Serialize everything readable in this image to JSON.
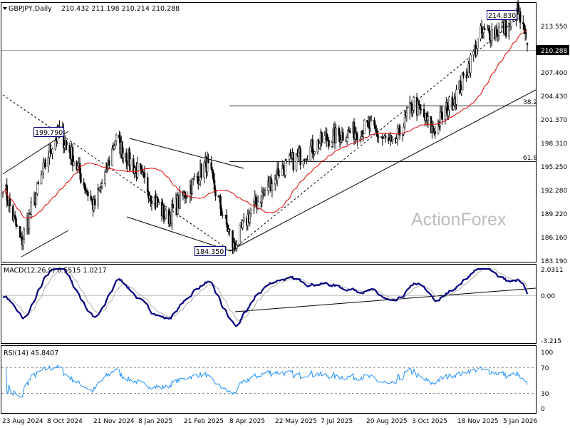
{
  "header": {
    "symbol_label": "GBPJPY,Daily",
    "ohlc": "210.432 211.198 210.214 210.288"
  },
  "watermark": "ActionForex",
  "price_panel": {
    "y_ticks": [
      "213.550",
      "210.288",
      "207.400",
      "204.430",
      "201.370",
      "198.310",
      "195.250",
      "192.280",
      "189.220",
      "186.160",
      "183.190"
    ],
    "current_price": "210.288",
    "fib_labels": [
      "38.2",
      "61.8"
    ],
    "annotations": [
      "214.830",
      "199.790",
      "184.350"
    ]
  },
  "macd_panel": {
    "label": "MACD(12,26,9) 0.5515 1.0217",
    "y_ticks": [
      "2.0311",
      "0.00",
      "-3.215"
    ]
  },
  "rsi_panel": {
    "label": "RSI(14) 45.8407",
    "y_ticks": [
      "100",
      "70",
      "30",
      "0"
    ]
  },
  "x_ticks": [
    "23 Aug 2024",
    "8 Oct 2024",
    "21 Nov 2024",
    "8 Jan 2025",
    "21 Feb 2025",
    "8 Apr 2025",
    "22 May 2025",
    "7 Jul 2025",
    "20 Aug 2025",
    "3 Oct 2025",
    "18 Nov 2025",
    "5 Jan 2026"
  ],
  "colors": {
    "candle": "#000000",
    "ma": "#e00000",
    "macd": "#000080",
    "signal": "#aaaaaa",
    "rsi": "#1e90ff",
    "trend": "#000000",
    "grid_line": "#808080"
  },
  "chart_data": {
    "type": "candlestick",
    "symbol": "GBPJPY",
    "timeframe": "Daily",
    "ohlc_last": {
      "open": 210.432,
      "high": 211.198,
      "low": 210.214,
      "close": 210.288
    },
    "price_ylim": [
      183.19,
      215.5
    ],
    "anchors": [
      {
        "date": "23 Aug 2024",
        "close": 193.0
      },
      {
        "date": "10 Sep 2024",
        "close": 185.5
      },
      {
        "date": "8 Oct 2024",
        "close": 197.0
      },
      {
        "date": "18 Oct 2024",
        "close": 199.5
      },
      {
        "date": "1 Nov 2024",
        "close": 196.0
      },
      {
        "date": "21 Nov 2024",
        "close": 190.0
      },
      {
        "date": "2 Dec 2024",
        "close": 194.0
      },
      {
        "date": "12 Dec 2024",
        "close": 198.5
      },
      {
        "date": "8 Jan 2025",
        "close": 193.5
      },
      {
        "date": "1 Feb 2025",
        "close": 188.5
      },
      {
        "date": "21 Feb 2025",
        "close": 192.0
      },
      {
        "date": "12 Mar 2025",
        "close": 195.5
      },
      {
        "date": "8 Apr 2025",
        "close": 185.0
      },
      {
        "date": "25 Apr 2025",
        "close": 189.5
      },
      {
        "date": "22 May 2025",
        "close": 194.5
      },
      {
        "date": "7 Jul 2025",
        "close": 198.5
      },
      {
        "date": "20 Aug 2025",
        "close": 200.0
      },
      {
        "date": "12 Sep 2025",
        "close": 197.5
      },
      {
        "date": "3 Oct 2025",
        "close": 203.0
      },
      {
        "date": "22 Oct 2025",
        "close": 199.5
      },
      {
        "date": "18 Nov 2025",
        "close": 205.0
      },
      {
        "date": "8 Dec 2025",
        "close": 211.5
      },
      {
        "date": "5 Jan 2026",
        "close": 212.5
      },
      {
        "date": "13 Jan 2026",
        "close": 214.5
      },
      {
        "date": "23 Jan 2026",
        "close": 210.288
      }
    ],
    "swing_points": [
      {
        "label": "199.790",
        "value": 199.79,
        "date": "8 Oct 2024"
      },
      {
        "label": "184.350",
        "value": 184.35,
        "date": "8 Apr 2025"
      },
      {
        "label": "214.830",
        "value": 214.83,
        "date": "13 Jan 2026"
      }
    ],
    "fibonacci": [
      {
        "label": "38.2",
        "value": 203.5
      },
      {
        "label": "61.8",
        "value": 195.9
      }
    ],
    "moving_average": "red line",
    "macd": {
      "params": "12,26,9",
      "macd_last": 0.5515,
      "signal_last": 1.0217,
      "ylim": [
        -3.215,
        2.0311
      ]
    },
    "rsi": {
      "period": 14,
      "last": 45.8407,
      "levels": [
        70,
        30
      ],
      "ylim": [
        0,
        100
      ]
    },
    "grid": false
  }
}
